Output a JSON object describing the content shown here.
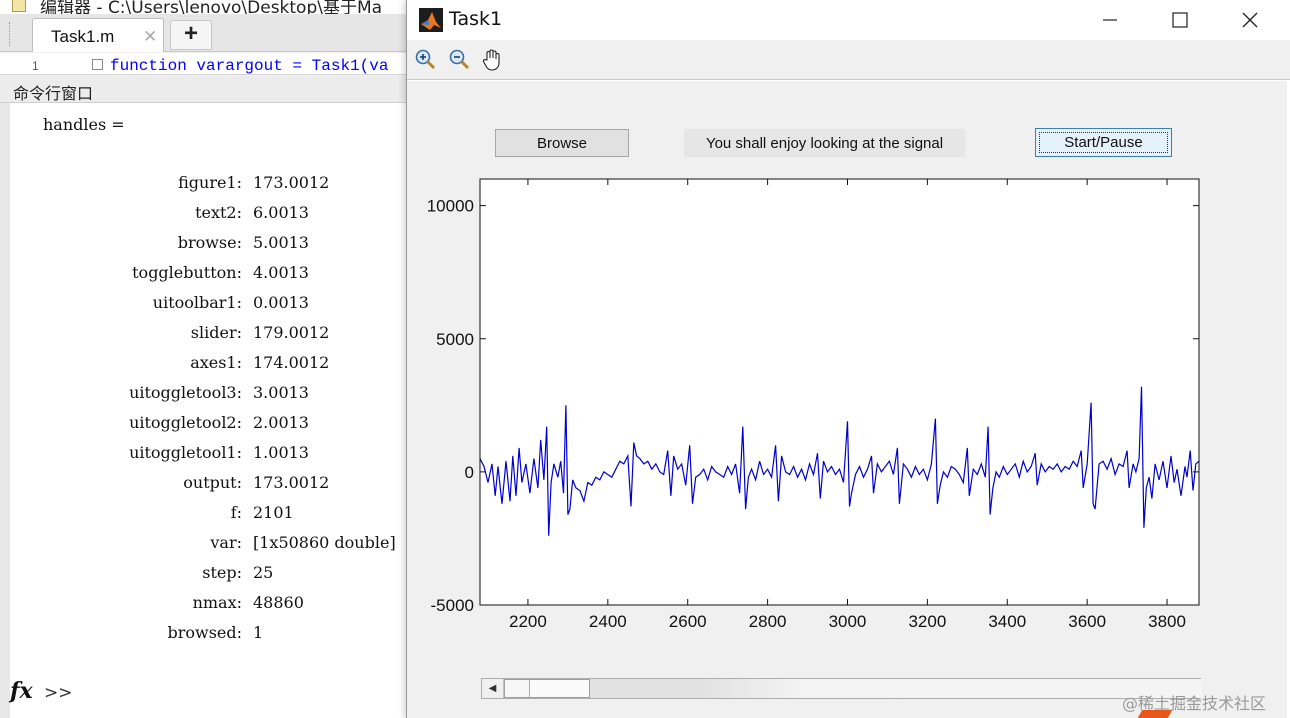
{
  "editor": {
    "title": "编辑器 - C:\\Users\\lenovo\\Desktop\\基于Ma",
    "tab_label": "Task1.m",
    "tab_close": "✕",
    "tab_add": "+",
    "line_number": "1",
    "code_line": "function varargout = Task1(va"
  },
  "command_window": {
    "header": "命令行窗口",
    "var_line": "handles =",
    "fields": [
      {
        "key": "figure1:",
        "value": "173.0012"
      },
      {
        "key": "text2:",
        "value": "6.0013"
      },
      {
        "key": "browse:",
        "value": "5.0013"
      },
      {
        "key": "togglebutton:",
        "value": "4.0013"
      },
      {
        "key": "uitoolbar1:",
        "value": "0.0013"
      },
      {
        "key": "slider:",
        "value": "179.0012"
      },
      {
        "key": "axes1:",
        "value": "174.0012"
      },
      {
        "key": "uitoggletool3:",
        "value": "3.0013"
      },
      {
        "key": "uitoggletool2:",
        "value": "2.0013"
      },
      {
        "key": "uitoggletool1:",
        "value": "1.0013"
      },
      {
        "key": "output:",
        "value": "173.0012"
      },
      {
        "key": "f:",
        "value": "2101"
      },
      {
        "key": "var:",
        "value": "[1x50860 double]"
      },
      {
        "key": "step:",
        "value": "25"
      },
      {
        "key": "nmax:",
        "value": "48860"
      },
      {
        "key": "browsed:",
        "value": "1"
      }
    ],
    "prompt_fx": "fx",
    "prompt": ">>"
  },
  "figure": {
    "title": "Task1",
    "toolbar": [
      "zoom-in-icon",
      "zoom-out-icon",
      "pan-hand-icon"
    ],
    "browse_label": "Browse",
    "static_text": "You shall enjoy looking at the signal",
    "toggle_label": "Start/Pause",
    "slider_value": 0.08
  },
  "chart_data": {
    "type": "line",
    "xlim": [
      2080,
      3880
    ],
    "ylim": [
      -5000,
      11000
    ],
    "xticks": [
      "2200",
      "2400",
      "2600",
      "2800",
      "3000",
      "3200",
      "3400",
      "3600",
      "3800"
    ],
    "yticks": [
      "10000",
      "5000",
      "0",
      "-5000"
    ],
    "xtick_values": [
      2200,
      2400,
      2600,
      2800,
      3000,
      3200,
      3400,
      3600,
      3800
    ],
    "ytick_values": [
      10000,
      5000,
      0,
      -5000
    ],
    "grid": false,
    "line_color": "#0000cc",
    "series": [
      {
        "values": [
          [
            2080,
            500
          ],
          [
            2090,
            200
          ],
          [
            2100,
            -400
          ],
          [
            2110,
            300
          ],
          [
            2118,
            -900
          ],
          [
            2125,
            200
          ],
          [
            2135,
            -1200
          ],
          [
            2145,
            400
          ],
          [
            2155,
            -1100
          ],
          [
            2162,
            600
          ],
          [
            2170,
            -900
          ],
          [
            2178,
            900
          ],
          [
            2185,
            -400
          ],
          [
            2195,
            300
          ],
          [
            2205,
            -800
          ],
          [
            2215,
            500
          ],
          [
            2225,
            -600
          ],
          [
            2232,
            1200
          ],
          [
            2240,
            -300
          ],
          [
            2247,
            1700
          ],
          [
            2252,
            -2400
          ],
          [
            2258,
            -400
          ],
          [
            2265,
            300
          ],
          [
            2275,
            -200
          ],
          [
            2282,
            400
          ],
          [
            2289,
            -800
          ],
          [
            2295,
            2500
          ],
          [
            2300,
            -1600
          ],
          [
            2305,
            -1400
          ],
          [
            2312,
            -300
          ],
          [
            2320,
            -600
          ],
          [
            2330,
            -700
          ],
          [
            2340,
            -1100
          ],
          [
            2350,
            -400
          ],
          [
            2360,
            -500
          ],
          [
            2370,
            -200
          ],
          [
            2380,
            -300
          ],
          [
            2390,
            0
          ],
          [
            2400,
            -100
          ],
          [
            2410,
            -200
          ],
          [
            2420,
            100
          ],
          [
            2430,
            400
          ],
          [
            2440,
            300
          ],
          [
            2450,
            600
          ],
          [
            2458,
            -1300
          ],
          [
            2465,
            1100
          ],
          [
            2472,
            600
          ],
          [
            2480,
            500
          ],
          [
            2490,
            300
          ],
          [
            2500,
            400
          ],
          [
            2510,
            100
          ],
          [
            2520,
            300
          ],
          [
            2530,
            0
          ],
          [
            2540,
            -100
          ],
          [
            2550,
            800
          ],
          [
            2558,
            -900
          ],
          [
            2565,
            600
          ],
          [
            2575,
            100
          ],
          [
            2585,
            300
          ],
          [
            2595,
            -500
          ],
          [
            2605,
            1000
          ],
          [
            2612,
            -1200
          ],
          [
            2620,
            -200
          ],
          [
            2630,
            -100
          ],
          [
            2640,
            100
          ],
          [
            2650,
            -300
          ],
          [
            2660,
            200
          ],
          [
            2670,
            0
          ],
          [
            2680,
            -100
          ],
          [
            2690,
            -200
          ],
          [
            2700,
            200
          ],
          [
            2710,
            -100
          ],
          [
            2720,
            300
          ],
          [
            2730,
            -800
          ],
          [
            2738,
            1700
          ],
          [
            2745,
            -1400
          ],
          [
            2752,
            -200
          ],
          [
            2760,
            100
          ],
          [
            2770,
            -300
          ],
          [
            2780,
            400
          ],
          [
            2790,
            -100
          ],
          [
            2800,
            100
          ],
          [
            2810,
            -200
          ],
          [
            2820,
            1000
          ],
          [
            2827,
            -1100
          ],
          [
            2835,
            600
          ],
          [
            2845,
            0
          ],
          [
            2855,
            -100
          ],
          [
            2865,
            200
          ],
          [
            2875,
            -200
          ],
          [
            2885,
            100
          ],
          [
            2895,
            -300
          ],
          [
            2905,
            300
          ],
          [
            2915,
            -100
          ],
          [
            2925,
            700
          ],
          [
            2932,
            -1000
          ],
          [
            2940,
            400
          ],
          [
            2950,
            0
          ],
          [
            2960,
            200
          ],
          [
            2970,
            -100
          ],
          [
            2980,
            100
          ],
          [
            2990,
            -400
          ],
          [
            3000,
            1900
          ],
          [
            3005,
            -1300
          ],
          [
            3010,
            -800
          ],
          [
            3020,
            -100
          ],
          [
            3030,
            200
          ],
          [
            3040,
            -200
          ],
          [
            3050,
            100
          ],
          [
            3060,
            600
          ],
          [
            3065,
            -800
          ],
          [
            3075,
            300
          ],
          [
            3085,
            0
          ],
          [
            3095,
            200
          ],
          [
            3105,
            400
          ],
          [
            3115,
            -100
          ],
          [
            3125,
            900
          ],
          [
            3130,
            -1200
          ],
          [
            3140,
            300
          ],
          [
            3150,
            100
          ],
          [
            3160,
            -200
          ],
          [
            3170,
            200
          ],
          [
            3180,
            -100
          ],
          [
            3190,
            100
          ],
          [
            3200,
            -300
          ],
          [
            3210,
            300
          ],
          [
            3220,
            2000
          ],
          [
            3225,
            -1200
          ],
          [
            3232,
            -500
          ],
          [
            3240,
            0
          ],
          [
            3250,
            -200
          ],
          [
            3260,
            200
          ],
          [
            3270,
            100
          ],
          [
            3280,
            -100
          ],
          [
            3290,
            -400
          ],
          [
            3300,
            900
          ],
          [
            3305,
            -900
          ],
          [
            3315,
            100
          ],
          [
            3325,
            -100
          ],
          [
            3335,
            300
          ],
          [
            3345,
            -200
          ],
          [
            3352,
            1700
          ],
          [
            3357,
            -1600
          ],
          [
            3364,
            -600
          ],
          [
            3372,
            0
          ],
          [
            3380,
            -200
          ],
          [
            3390,
            200
          ],
          [
            3400,
            -100
          ],
          [
            3410,
            100
          ],
          [
            3420,
            300
          ],
          [
            3430,
            -200
          ],
          [
            3440,
            400
          ],
          [
            3450,
            0
          ],
          [
            3460,
            200
          ],
          [
            3470,
            700
          ],
          [
            3475,
            -500
          ],
          [
            3485,
            300
          ],
          [
            3495,
            0
          ],
          [
            3505,
            200
          ],
          [
            3515,
            100
          ],
          [
            3525,
            300
          ],
          [
            3535,
            0
          ],
          [
            3545,
            200
          ],
          [
            3555,
            100
          ],
          [
            3565,
            400
          ],
          [
            3575,
            200
          ],
          [
            3585,
            800
          ],
          [
            3590,
            -600
          ],
          [
            3600,
            300
          ],
          [
            3610,
            2600
          ],
          [
            3615,
            -1200
          ],
          [
            3620,
            -1400
          ],
          [
            3630,
            300
          ],
          [
            3640,
            400
          ],
          [
            3650,
            100
          ],
          [
            3660,
            500
          ],
          [
            3670,
            -100
          ],
          [
            3680,
            300
          ],
          [
            3690,
            200
          ],
          [
            3700,
            800
          ],
          [
            3705,
            -600
          ],
          [
            3715,
            300
          ],
          [
            3722,
            0
          ],
          [
            3730,
            500
          ],
          [
            3736,
            3200
          ],
          [
            3742,
            -2100
          ],
          [
            3748,
            -600
          ],
          [
            3755,
            -200
          ],
          [
            3762,
            -1000
          ],
          [
            3770,
            300
          ],
          [
            3780,
            -300
          ],
          [
            3790,
            400
          ],
          [
            3800,
            -600
          ],
          [
            3810,
            600
          ],
          [
            3818,
            -400
          ],
          [
            3825,
            100
          ],
          [
            3835,
            -900
          ],
          [
            3845,
            200
          ],
          [
            3850,
            -200
          ],
          [
            3858,
            800
          ],
          [
            3865,
            -700
          ],
          [
            3872,
            300
          ],
          [
            3880,
            400
          ]
        ]
      }
    ]
  },
  "watermark": "@稀土掘金技术社区"
}
